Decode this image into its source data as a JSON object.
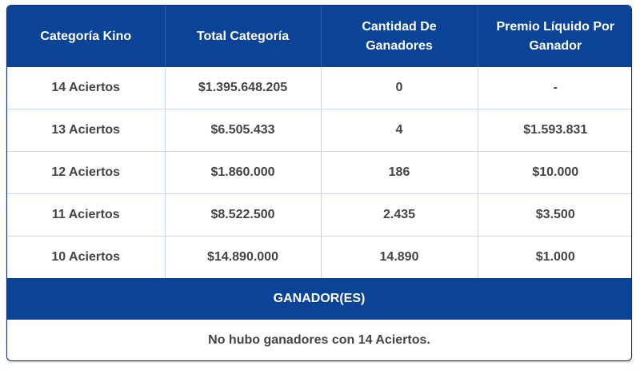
{
  "table": {
    "headers": [
      "Categoría Kino",
      "Total Categoría",
      "Cantidad De Ganadores",
      "Premio Líquido Por Ganador"
    ],
    "rows": [
      [
        "14 Aciertos",
        "$1.395.648.205",
        "0",
        "-"
      ],
      [
        "13 Aciertos",
        "$6.505.433",
        "4",
        "$1.593.831"
      ],
      [
        "12 Aciertos",
        "$1.860.000",
        "186",
        "$10.000"
      ],
      [
        "11 Aciertos",
        "$8.522.500",
        "2.435",
        "$3.500"
      ],
      [
        "10 Aciertos",
        "$14.890.000",
        "14.890",
        "$1.000"
      ]
    ]
  },
  "winners": {
    "title": "GANADOR(ES)",
    "message": "No hubo ganadores con 14 Aciertos."
  },
  "colors": {
    "header_bg": "#0b4496",
    "text": "#444444",
    "grid": "#c9d9ea"
  }
}
